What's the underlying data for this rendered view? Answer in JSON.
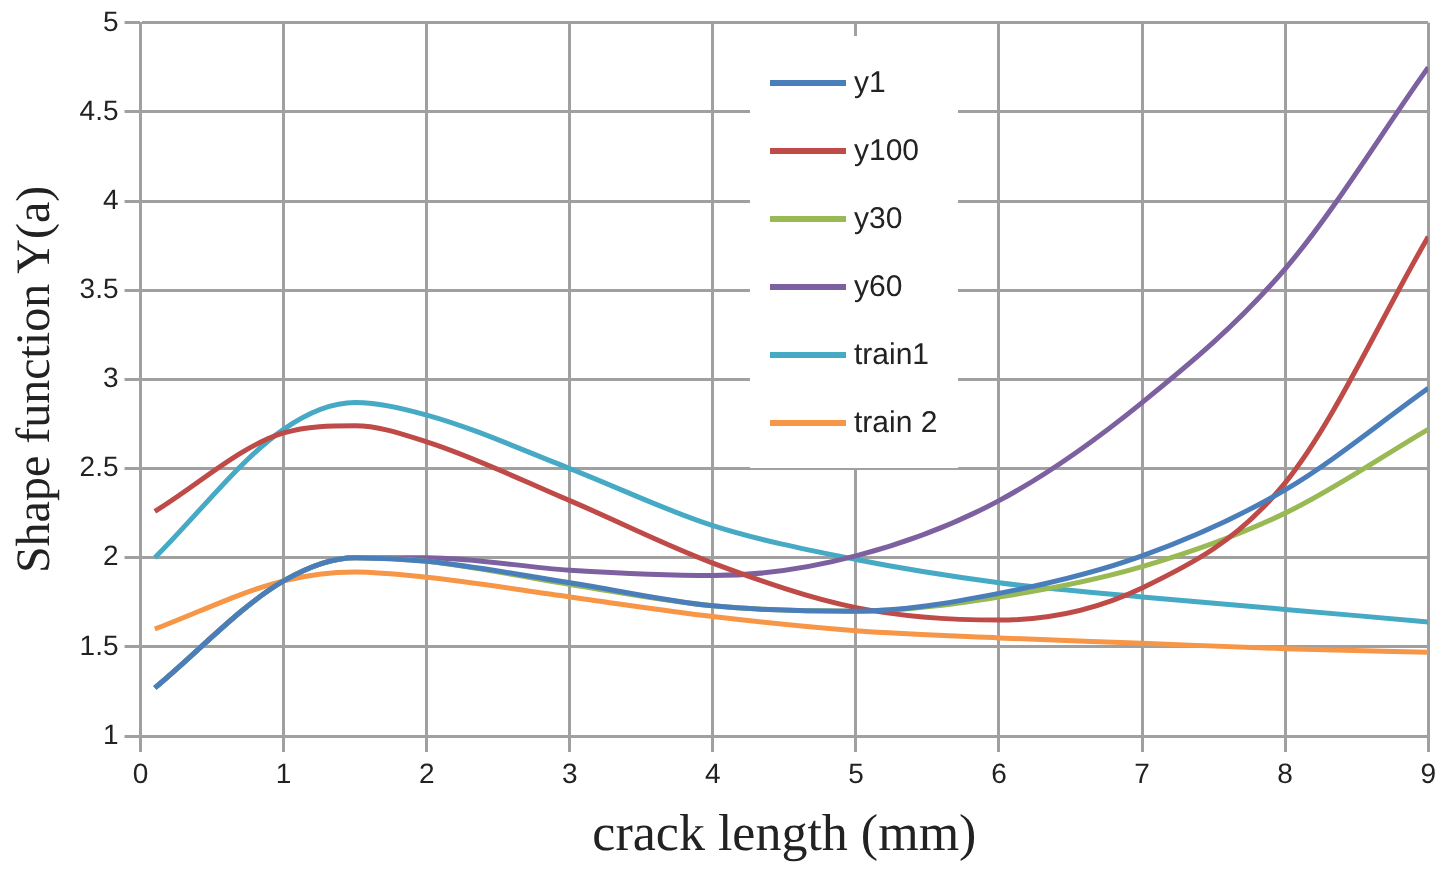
{
  "chart_data": {
    "type": "line",
    "xlabel": "crack length (mm)",
    "ylabel": "Shape function Y(a)",
    "x": [
      0.1,
      1,
      1.5,
      2,
      3,
      4,
      5,
      6,
      7,
      8,
      9
    ],
    "series": [
      {
        "name": "y1",
        "color": "#4a7ebb",
        "values": [
          1.27,
          1.87,
          2.0,
          1.98,
          1.86,
          1.73,
          1.7,
          1.8,
          2.01,
          2.38,
          2.95
        ]
      },
      {
        "name": "y100",
        "color": "#be4b48",
        "values": [
          2.26,
          2.7,
          2.74,
          2.65,
          2.32,
          1.97,
          1.72,
          1.65,
          1.83,
          2.42,
          3.8
        ]
      },
      {
        "name": "y30",
        "color": "#98b954",
        "values": [
          1.27,
          1.87,
          2.0,
          1.98,
          1.85,
          1.73,
          1.7,
          1.78,
          1.95,
          2.25,
          2.72
        ]
      },
      {
        "name": "y60",
        "color": "#7d60a0",
        "values": [
          1.27,
          1.87,
          2.0,
          2.0,
          1.93,
          1.9,
          2.01,
          2.32,
          2.87,
          3.62,
          4.75
        ]
      },
      {
        "name": "train1",
        "color": "#46aac5",
        "values": [
          2.0,
          2.72,
          2.87,
          2.8,
          2.5,
          2.18,
          1.99,
          1.86,
          1.78,
          1.71,
          1.64
        ]
      },
      {
        "name": "train 2",
        "color": "#f79646",
        "values": [
          1.6,
          1.87,
          1.92,
          1.89,
          1.78,
          1.67,
          1.59,
          1.55,
          1.52,
          1.49,
          1.47
        ]
      }
    ],
    "xlim": [
      0,
      9
    ],
    "xticks": [
      0,
      1,
      2,
      3,
      4,
      5,
      6,
      7,
      8,
      9
    ],
    "ylim": [
      1,
      5
    ],
    "yticks": [
      1,
      1.5,
      2,
      2.5,
      3,
      3.5,
      4,
      4.5,
      5
    ],
    "grid": true,
    "legend": "top",
    "marker": "none",
    "line_style": "solid"
  }
}
